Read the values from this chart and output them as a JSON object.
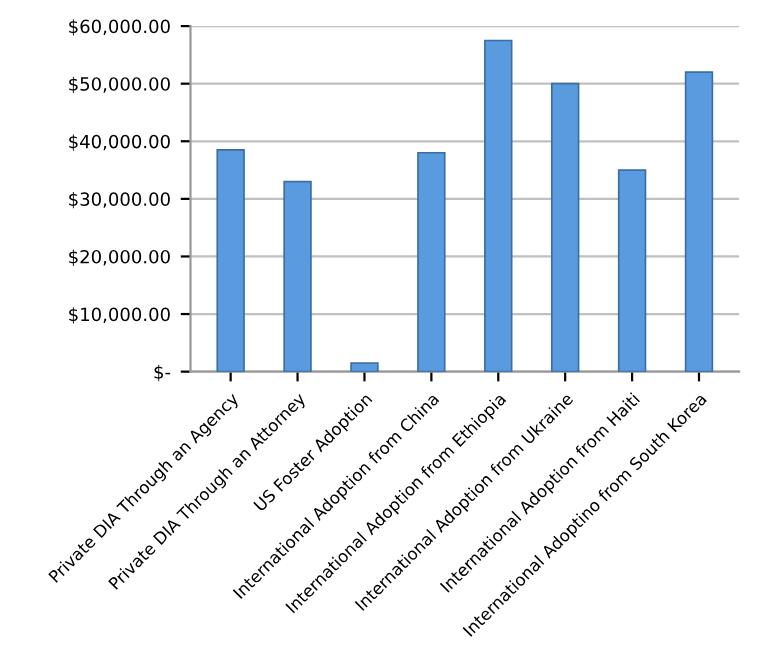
{
  "chart_data": {
    "type": "bar",
    "categories": [
      "Private DIA Through an Agency",
      "Private DIA Through an Attorney",
      "US Foster Adoption",
      "International Adoption from China",
      "International Adoption from Ethiopia",
      "International Adoption from Ukraine",
      "International Adoption from Haiti",
      "International Adoptino from South Korea"
    ],
    "values": [
      38500,
      33000,
      1500,
      38000,
      57500,
      50000,
      35000,
      52000
    ],
    "color": "#5a9be0",
    "ylim": [
      0,
      60000
    ],
    "yticks": [
      {
        "value": 0,
        "label": "$-"
      },
      {
        "value": 10000,
        "label": "$10,000.00"
      },
      {
        "value": 20000,
        "label": "$20,000.00"
      },
      {
        "value": 30000,
        "label": "$30,000.00"
      },
      {
        "value": 40000,
        "label": "$40,000.00"
      },
      {
        "value": 50000,
        "label": "$50,000.00"
      },
      {
        "value": 60000,
        "label": "$60,000.00"
      }
    ],
    "grid": "y"
  }
}
